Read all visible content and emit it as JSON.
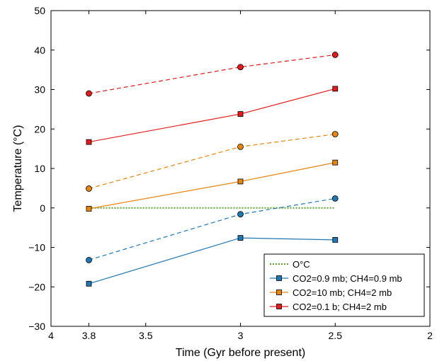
{
  "chart_data": {
    "type": "line",
    "title": "",
    "xlabel": "Time (Gyr before present)",
    "ylabel": "Temperature (°C)",
    "xlim": [
      4,
      2
    ],
    "ylim": [
      -30,
      50
    ],
    "x_reversed": true,
    "xticks": [
      "4",
      "3.8",
      "3.5",
      "3",
      "2.5",
      "2"
    ],
    "xtick_values": [
      4,
      3.8,
      3.5,
      3,
      2.5,
      2
    ],
    "yticks": [
      "−30",
      "−20",
      "−10",
      "0",
      "10",
      "20",
      "30",
      "40",
      "50"
    ],
    "ytick_values": [
      -30,
      -20,
      -10,
      0,
      10,
      20,
      30,
      40,
      50
    ],
    "grid": false,
    "legend_position": "bottom-right",
    "series": [
      {
        "name": "O°C",
        "legend": true,
        "color": "#5aa02c",
        "line": "dotted",
        "marker": "none",
        "x": [
          3.8,
          2.5
        ],
        "y": [
          0,
          0
        ]
      },
      {
        "name": "CO2=0.9 mb; CH4=0.9 mb",
        "legend": true,
        "color": "#1f77b4",
        "line": "solid",
        "marker": "square",
        "x": [
          3.8,
          3.0,
          2.5
        ],
        "y": [
          -19.2,
          -7.6,
          -8.1
        ]
      },
      {
        "name": "CO2=10 mb; CH4=2 mb",
        "legend": true,
        "color": "#e8850c",
        "line": "solid",
        "marker": "square",
        "x": [
          3.8,
          3.0,
          2.5
        ],
        "y": [
          -0.2,
          6.7,
          11.5
        ]
      },
      {
        "name": "CO2=0.1 b; CH4=2 mb",
        "legend": true,
        "color": "#e41a1c",
        "line": "solid",
        "marker": "square",
        "x": [
          3.8,
          3.0,
          2.5
        ],
        "y": [
          16.7,
          23.8,
          30.2
        ]
      },
      {
        "name": "",
        "legend": false,
        "color": "#1f77b4",
        "line": "dashed",
        "marker": "circle",
        "x": [
          3.8,
          3.0,
          2.5
        ],
        "y": [
          -13.2,
          -1.6,
          2.4
        ]
      },
      {
        "name": "",
        "legend": false,
        "color": "#e8850c",
        "line": "dashed",
        "marker": "circle",
        "x": [
          3.8,
          3.0,
          2.5
        ],
        "y": [
          4.9,
          15.5,
          18.7
        ]
      },
      {
        "name": "",
        "legend": false,
        "color": "#e41a1c",
        "line": "dashed",
        "marker": "circle",
        "x": [
          3.8,
          3.0,
          2.5
        ],
        "y": [
          29.0,
          35.7,
          38.8
        ]
      }
    ]
  }
}
